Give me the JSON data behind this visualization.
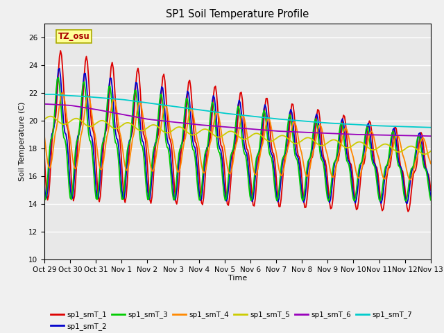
{
  "title": "SP1 Soil Temperature Profile",
  "xlabel": "Time",
  "ylabel": "Soil Temperature (C)",
  "ylim": [
    10,
    27
  ],
  "background_color": "#e8e8e8",
  "fig_background": "#f0f0f0",
  "tz_label": "TZ_osu",
  "tz_box_color": "#ffff99",
  "tz_text_color": "#aa0000",
  "tz_border_color": "#aaaa00",
  "series_colors": {
    "sp1_smT_1": "#dd0000",
    "sp1_smT_2": "#0000cc",
    "sp1_smT_3": "#00cc00",
    "sp1_smT_4": "#ff8800",
    "sp1_smT_5": "#cccc00",
    "sp1_smT_6": "#9900bb",
    "sp1_smT_7": "#00cccc"
  },
  "x_tick_labels": [
    "Oct 29",
    "Oct 30",
    "Oct 31",
    "Nov 1",
    "Nov 2",
    "Nov 3",
    "Nov 4",
    "Nov 5",
    "Nov 6",
    "Nov 7",
    "Nov 8",
    "Nov 9",
    "Nov 10",
    "Nov 11",
    "Nov 12",
    "Nov 13"
  ],
  "x_tick_positions": [
    0,
    1,
    2,
    3,
    4,
    5,
    6,
    7,
    8,
    9,
    10,
    11,
    12,
    13,
    14,
    15
  ],
  "yticks": [
    10,
    12,
    14,
    16,
    18,
    20,
    22,
    24,
    26
  ]
}
